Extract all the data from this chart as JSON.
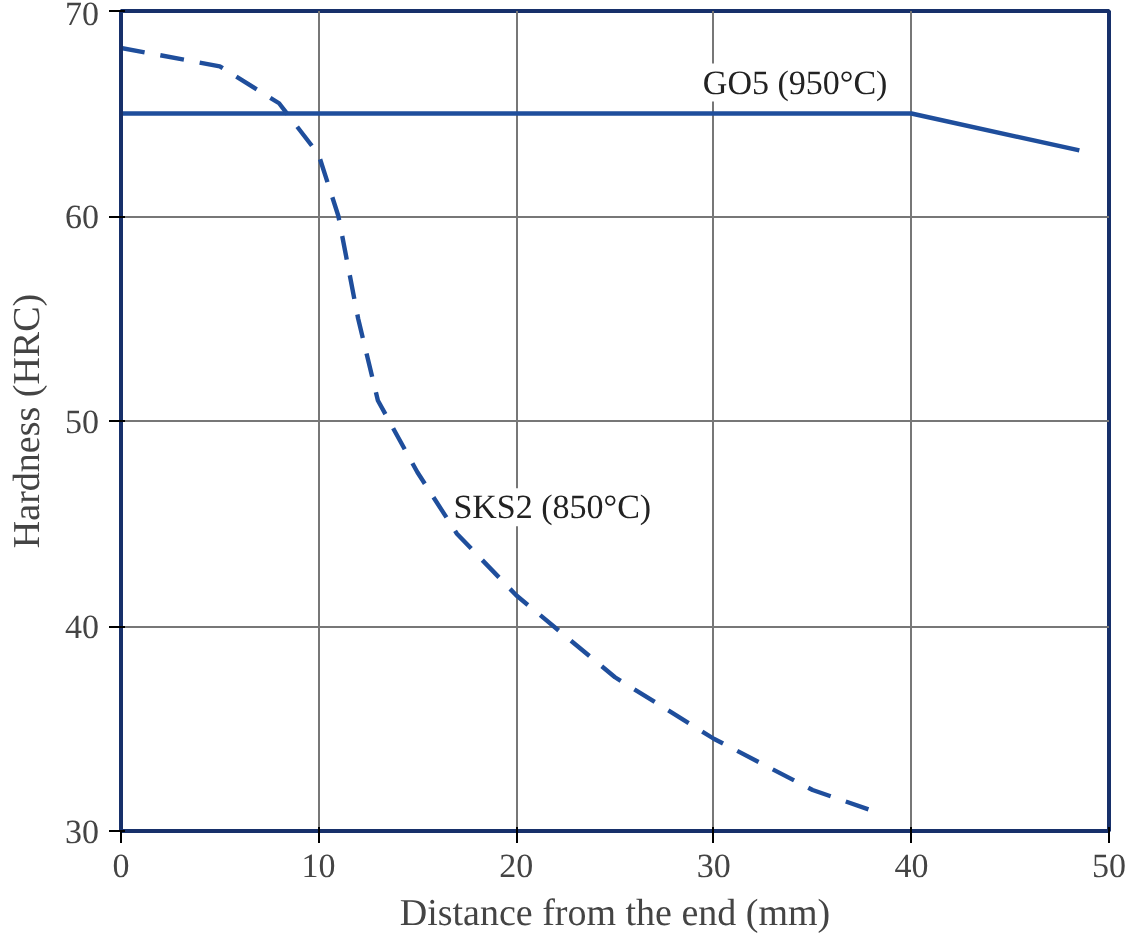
{
  "chart_data": {
    "type": "line",
    "xlabel": "Distance from the end (mm)",
    "ylabel": "Hardness (HRC)",
    "xlim": [
      0,
      50
    ],
    "ylim": [
      30,
      70
    ],
    "xticks": [
      0,
      10,
      20,
      30,
      40,
      50
    ],
    "yticks": [
      30,
      40,
      50,
      60,
      70
    ],
    "grid": true,
    "marker": "none",
    "series": [
      {
        "name": "GO5 (950°C)",
        "color": "#1f4e9c",
        "line_style": "solid",
        "x": [
          0,
          40,
          48.5
        ],
        "values": [
          65,
          65,
          63.2
        ]
      },
      {
        "name": "SKS2 (850°C)",
        "color": "#1f4e9c",
        "line_style": "dashed",
        "x": [
          0,
          5,
          8,
          10,
          11,
          12,
          13,
          15,
          17,
          20,
          25,
          30,
          35,
          38
        ],
        "values": [
          68.2,
          67.3,
          65.5,
          63,
          60,
          55,
          51,
          47.5,
          44.5,
          41.5,
          37.5,
          34.5,
          32,
          31
        ]
      }
    ]
  }
}
